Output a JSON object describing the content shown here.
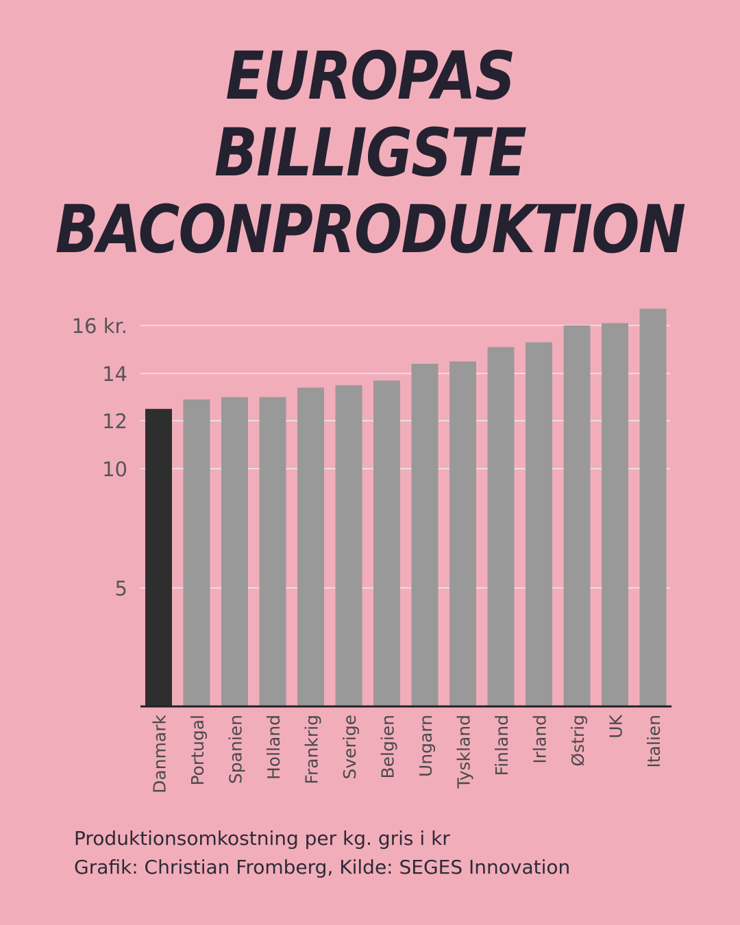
{
  "title_lines": [
    "EUROPAS",
    "BILLIGSTE",
    "BACONPRODUKTION"
  ],
  "chart_data": {
    "type": "bar",
    "categories": [
      "Danmark",
      "Portugal",
      "Spanien",
      "Holland",
      "Frankrig",
      "Sverige",
      "Belgien",
      "Ungarn",
      "Tyskland",
      "Finland",
      "Irland",
      "Østrig",
      "UK",
      "Italien"
    ],
    "values": [
      12.5,
      12.9,
      13.0,
      13.0,
      13.4,
      13.5,
      13.7,
      14.4,
      14.5,
      15.1,
      15.3,
      16.0,
      16.1,
      16.7
    ],
    "highlight_category": "Danmark",
    "y_ticks": [
      {
        "value": 5,
        "label": "5"
      },
      {
        "value": 10,
        "label": "10"
      },
      {
        "value": 12,
        "label": "12"
      },
      {
        "value": 14,
        "label": "14"
      },
      {
        "value": 16,
        "label": "16 kr."
      }
    ],
    "ylim": [
      0,
      16.7
    ],
    "grid": true,
    "colors": {
      "bar": "#999999",
      "highlight": "#2e2e2e",
      "grid": "#e6dfe1",
      "axis": "#222222",
      "tick_text": "#555555"
    }
  },
  "footer": {
    "line1": "Produktionsomkostning per kg. gris i kr",
    "line2": "Grafik: Christian Fromberg, Kilde: SEGES Innovation"
  }
}
